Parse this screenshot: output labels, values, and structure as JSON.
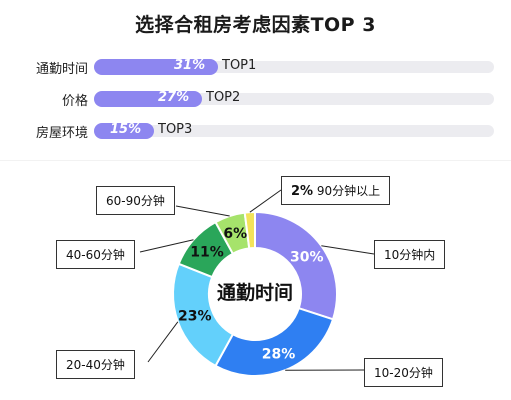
{
  "title": "选择合租房考虑因素TOP 3",
  "top_factors": [
    {
      "label": "通勤时间",
      "percent": "31%",
      "rank": "TOP1",
      "value": 31
    },
    {
      "label": "价格",
      "percent": "27%",
      "rank": "TOP2",
      "value": 27
    },
    {
      "label": "房屋环境",
      "percent": "15%",
      "rank": "TOP3",
      "value": 15
    }
  ],
  "chart_data": [
    {
      "type": "bar",
      "orientation": "horizontal",
      "title": "选择合租房考虑因素TOP 3",
      "categories": [
        "通勤时间",
        "价格",
        "房屋环境"
      ],
      "values": [
        31,
        27,
        15
      ],
      "unit": "%",
      "color": "#8d86f0"
    },
    {
      "type": "pie",
      "style": "donut",
      "center_label": "通勤时间",
      "categories": [
        "10分钟内",
        "10-20分钟",
        "20-40分钟",
        "40-60分钟",
        "60-90分钟",
        "90分钟以上"
      ],
      "values": [
        30,
        28,
        23,
        11,
        6,
        2
      ],
      "value_labels": [
        "30%",
        "28%",
        "23%",
        "11%",
        "6%",
        "2%"
      ],
      "colors": [
        "#8d86f0",
        "#2f7ff2",
        "#63d0fb",
        "#2aa65a",
        "#a6e36b",
        "#f3e35a"
      ]
    }
  ],
  "donut": {
    "center_label": "通勤时间",
    "callouts": {
      "c0": "10分钟内",
      "c1": "10-20分钟",
      "c2": "20-40分钟",
      "c3": "40-60分钟",
      "c4": "60-90分钟",
      "c5_pct": "2%",
      "c5_label": "90分钟以上"
    }
  }
}
